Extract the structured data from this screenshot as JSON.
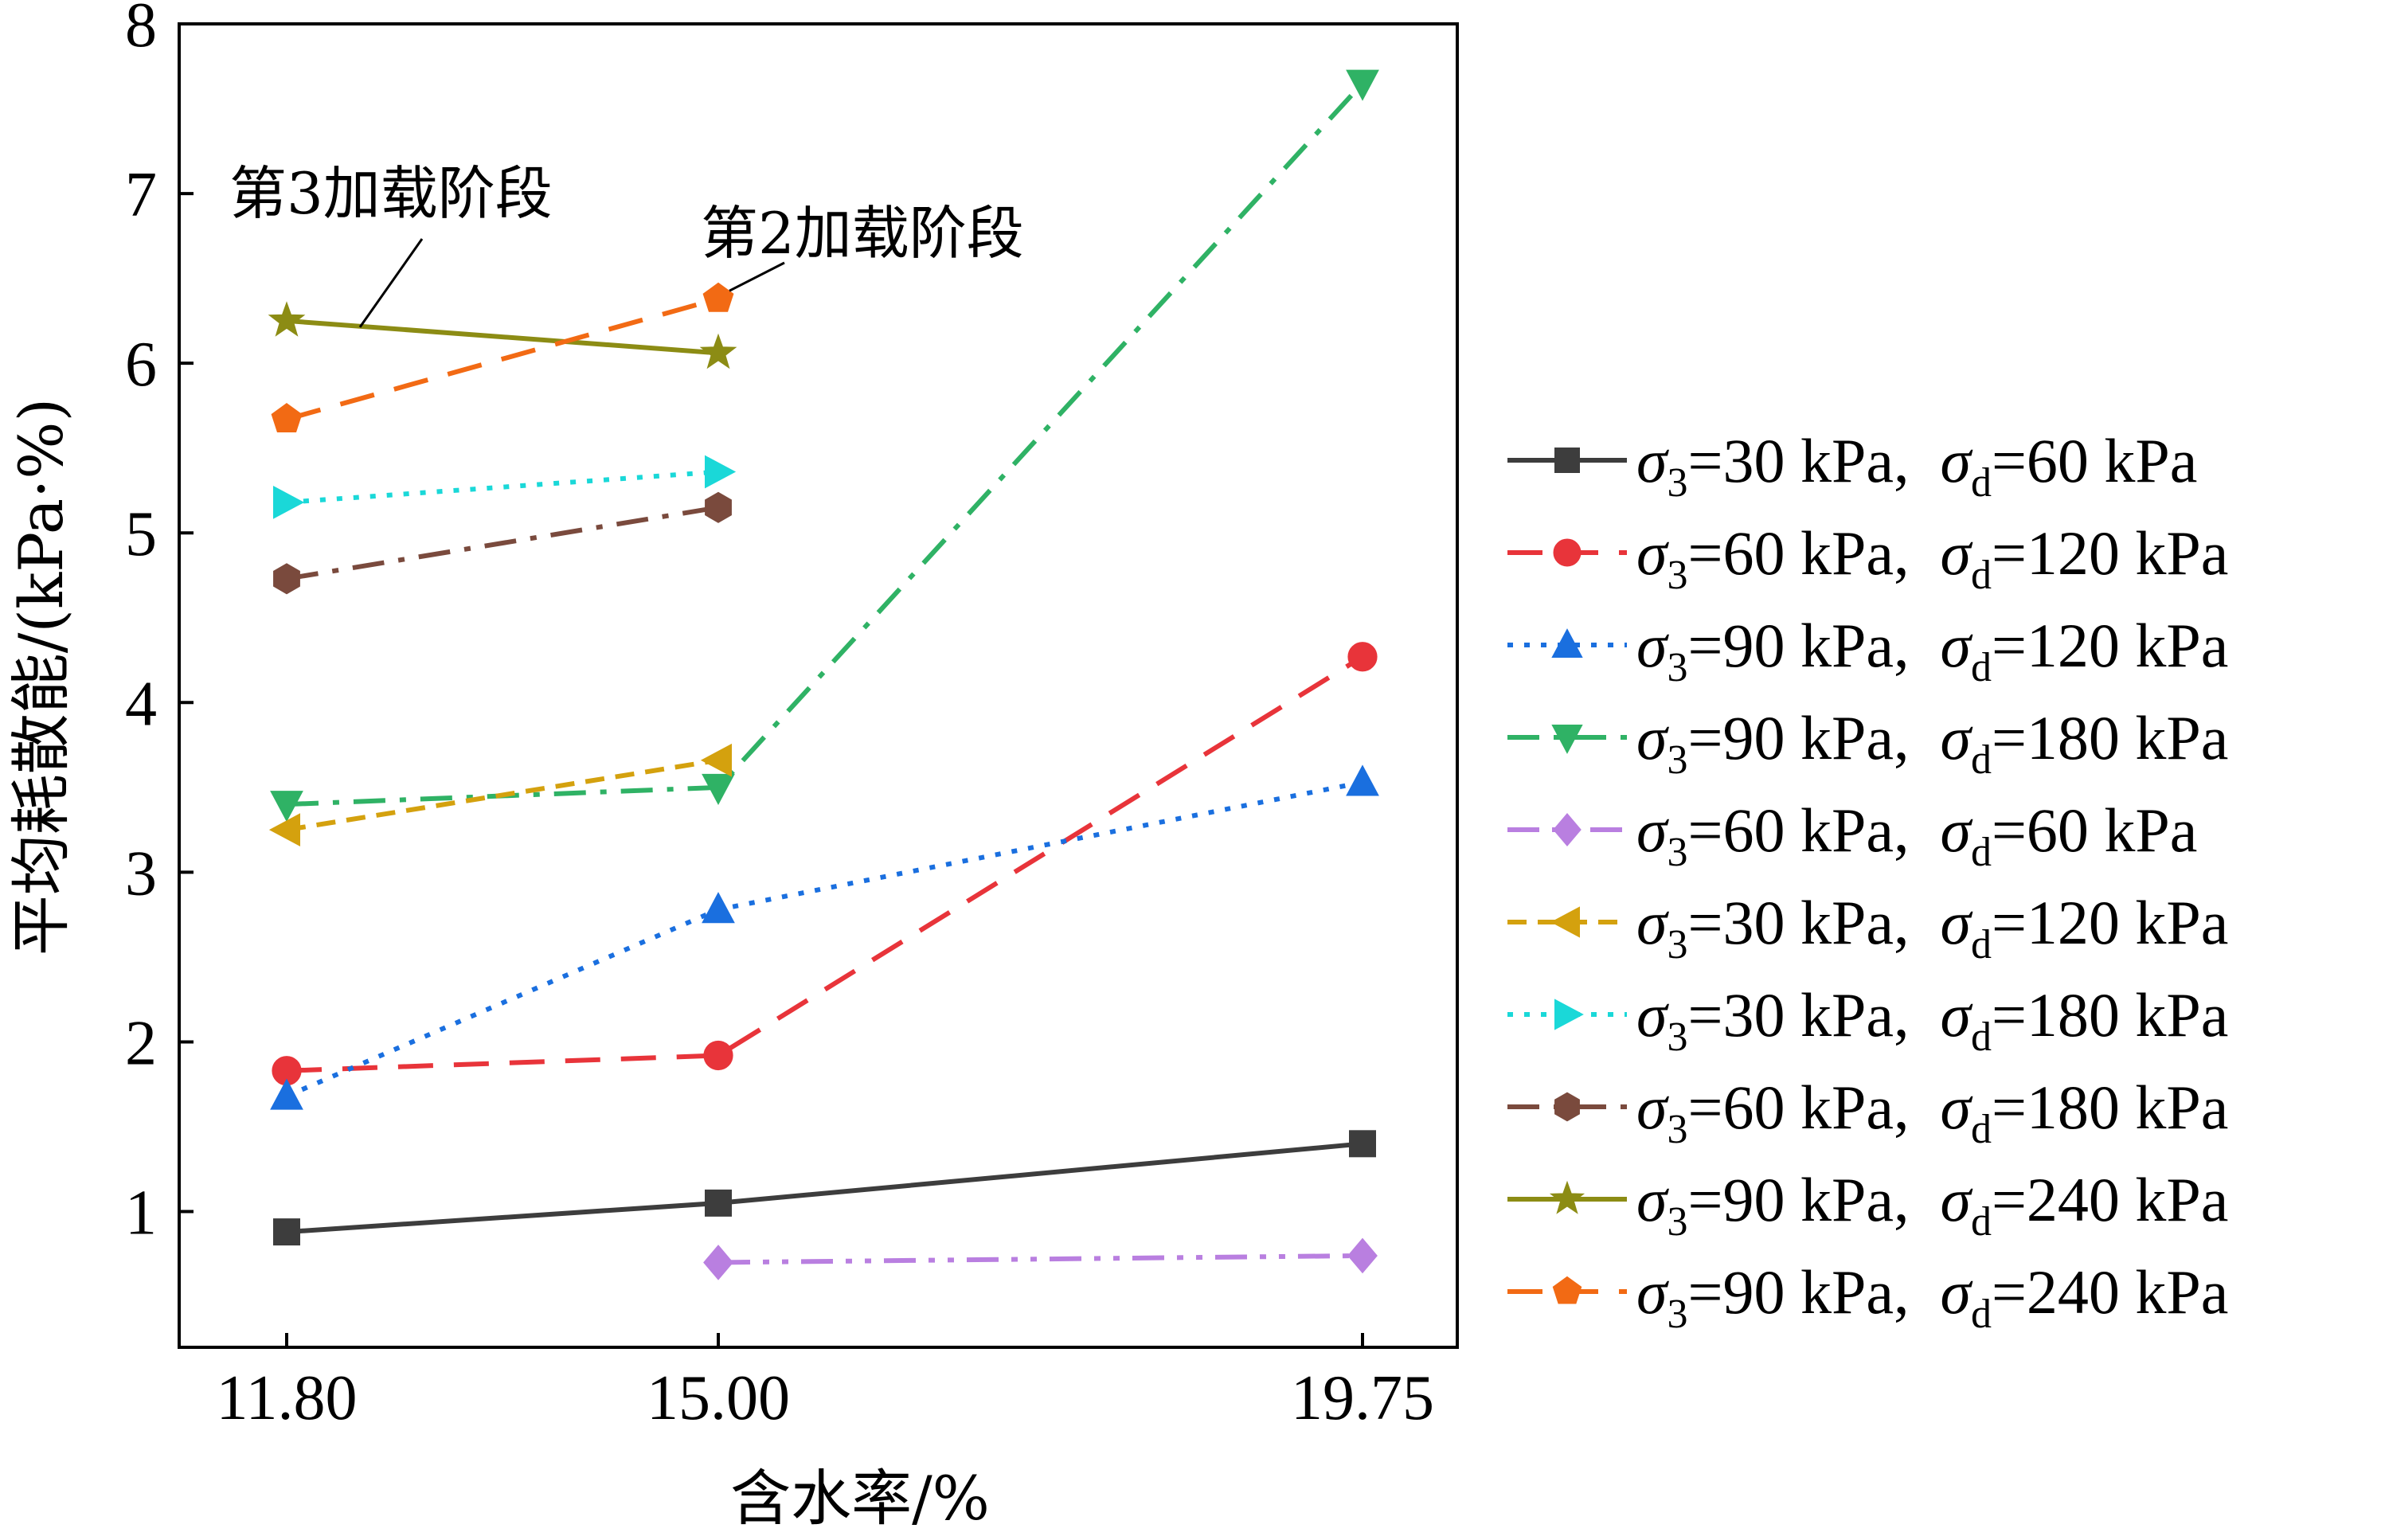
{
  "chart_data": {
    "type": "line",
    "xlabel": "含水率/%",
    "ylabel": "平均耗散能/(kPa·%)",
    "x_categories": [
      "11.80",
      "15.00",
      "19.75"
    ],
    "x_values": [
      11.8,
      15.0,
      19.75
    ],
    "ylim": [
      0.2,
      8
    ],
    "y_ticks": [
      "1",
      "2",
      "3",
      "4",
      "5",
      "6",
      "7",
      "8"
    ],
    "grid": false,
    "legend_position": "right",
    "annotations": [
      {
        "text": "第3加载阶段",
        "target_series": 8
      },
      {
        "text": "第2加载阶段",
        "target_series": 9
      }
    ],
    "series": [
      {
        "name": "σ3=30 kPa, σd=60 kPa",
        "sigma3": "30 kPa",
        "sigmad": "60 kPa",
        "color": "#3d3d3d",
        "dash": "solid",
        "marker": "square",
        "x": [
          11.8,
          15.0,
          19.75
        ],
        "y": [
          0.88,
          1.05,
          1.4
        ]
      },
      {
        "name": "σ3=60 kPa, σd=120 kPa",
        "sigma3": "60 kPa",
        "sigmad": "120 kPa",
        "color": "#e8343a",
        "dash": "dash",
        "marker": "circle",
        "x": [
          11.8,
          15.0,
          19.75
        ],
        "y": [
          1.83,
          1.92,
          4.27
        ]
      },
      {
        "name": "σ3=90 kPa, σd=120 kPa",
        "sigma3": "90 kPa",
        "sigmad": "120 kPa",
        "color": "#1a6fdf",
        "dash": "dot",
        "marker": "triangle-up",
        "x": [
          11.8,
          15.0,
          19.75
        ],
        "y": [
          1.68,
          2.78,
          3.53
        ]
      },
      {
        "name": "σ3=90 kPa, σd=180 kPa",
        "sigma3": "90 kPa",
        "sigmad": "180 kPa",
        "color": "#2fb265",
        "dash": "dashdot",
        "marker": "triangle-down",
        "x": [
          11.8,
          15.0,
          19.75
        ],
        "y": [
          3.4,
          3.5,
          7.65
        ]
      },
      {
        "name": "σ3=60 kPa, σd=60 kPa",
        "sigma3": "60 kPa",
        "sigmad": "60 kPa",
        "color": "#b97fe0",
        "dash": "dashdotdot",
        "marker": "diamond",
        "x": [
          15.0,
          19.75
        ],
        "y": [
          0.7,
          0.74
        ]
      },
      {
        "name": "σ3=30 kPa, σd=120 kPa",
        "sigma3": "30 kPa",
        "sigmad": "120 kPa",
        "color": "#d4a10e",
        "dash": "shortdash",
        "marker": "triangle-left",
        "x": [
          11.8,
          15.0
        ],
        "y": [
          3.25,
          3.66
        ]
      },
      {
        "name": "σ3=30 kPa, σd=180 kPa",
        "sigma3": "30 kPa",
        "sigmad": "180 kPa",
        "color": "#1ad8d8",
        "dash": "dot",
        "marker": "triangle-right",
        "x": [
          11.8,
          15.0
        ],
        "y": [
          5.18,
          5.36
        ]
      },
      {
        "name": "σ3=60 kPa, σd=180 kPa",
        "sigma3": "60 kPa",
        "sigmad": "180 kPa",
        "color": "#7a4a3d",
        "dash": "dashdot",
        "marker": "hexagon",
        "x": [
          11.8,
          15.0
        ],
        "y": [
          4.73,
          5.15
        ]
      },
      {
        "name": "σ3=90 kPa, σd=240 kPa",
        "sigma3": "90 kPa",
        "sigmad": "240 kPa",
        "color": "#8c8c14",
        "dash": "solid",
        "marker": "star",
        "x": [
          11.8,
          15.0
        ],
        "y": [
          6.25,
          6.06
        ]
      },
      {
        "name": "σ3=90 kPa, σd=240 kPa",
        "sigma3": "90 kPa",
        "sigmad": "240 kPa",
        "color": "#f26a14",
        "dash": "dash",
        "marker": "pentagon",
        "x": [
          11.8,
          15.0
        ],
        "y": [
          5.67,
          6.38
        ]
      }
    ]
  }
}
